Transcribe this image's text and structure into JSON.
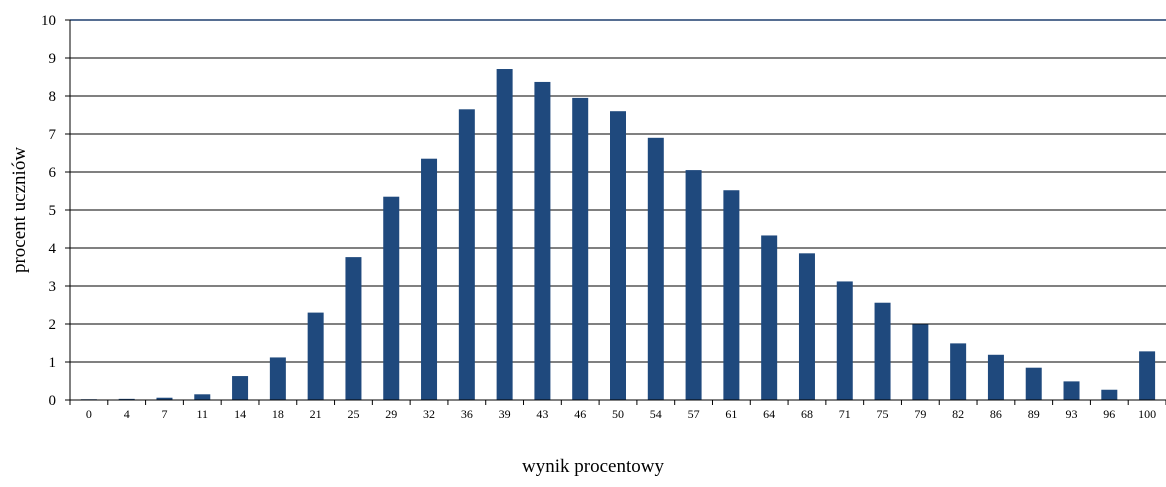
{
  "chart_data": {
    "type": "bar",
    "title": "",
    "xlabel": "wynik procentowy",
    "ylabel": "procent uczniów",
    "ylim": [
      0,
      10
    ],
    "yticks": [
      0,
      1,
      2,
      3,
      4,
      5,
      6,
      7,
      8,
      9,
      10
    ],
    "grid": true,
    "categories": [
      "0",
      "4",
      "7",
      "11",
      "14",
      "18",
      "21",
      "25",
      "29",
      "32",
      "36",
      "39",
      "43",
      "46",
      "50",
      "54",
      "57",
      "61",
      "64",
      "68",
      "71",
      "75",
      "79",
      "82",
      "86",
      "89",
      "93",
      "96",
      "100"
    ],
    "values": [
      0.02,
      0.03,
      0.06,
      0.15,
      0.63,
      1.12,
      2.3,
      3.76,
      5.35,
      6.35,
      7.65,
      8.71,
      8.37,
      7.95,
      7.6,
      6.9,
      6.05,
      5.52,
      4.33,
      3.86,
      3.12,
      2.56,
      1.99,
      1.49,
      1.19,
      0.85,
      0.49,
      0.27,
      1.28
    ],
    "bar_color": "#1F497D",
    "grid_color": "#000000"
  }
}
